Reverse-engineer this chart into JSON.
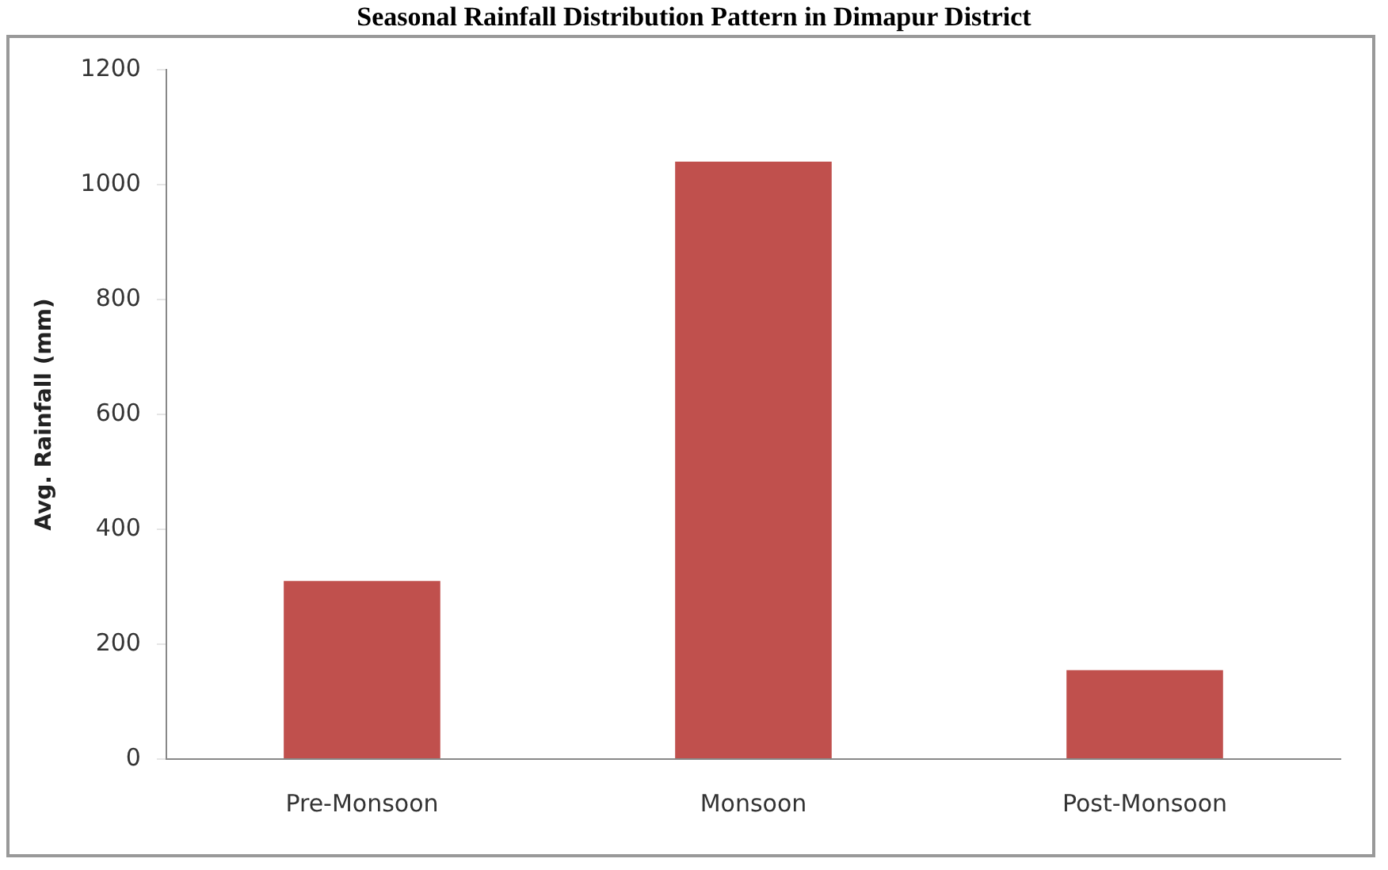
{
  "chart_data": {
    "type": "bar",
    "title": "Seasonal Rainfall Distribution Pattern in Dimapur District",
    "ylabel": "Avg. Rainfall (mm)",
    "categories": [
      "Pre-Monsoon",
      "Monsoon",
      "Post-Monsoon"
    ],
    "values": [
      310,
      1040,
      155
    ],
    "color": "#c0504d",
    "ylim": [
      0,
      1200
    ],
    "yticks": [
      0,
      200,
      400,
      600,
      800,
      1000,
      1200
    ],
    "grid": false
  }
}
